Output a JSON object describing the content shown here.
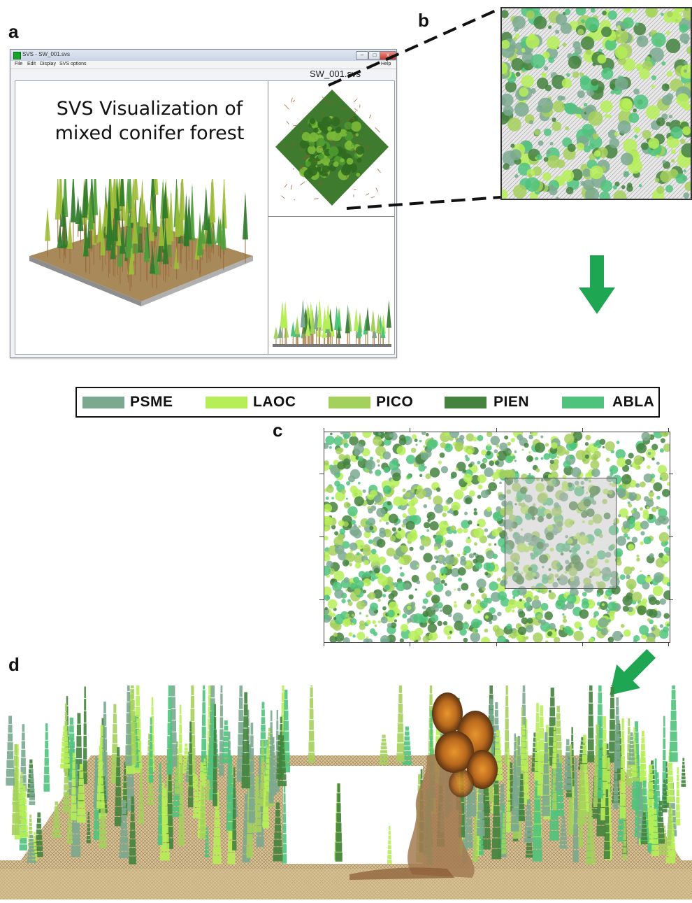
{
  "panels": {
    "a": "a",
    "b": "b",
    "c": "c",
    "d": "d"
  },
  "svs_window": {
    "title": "SVS - SW_001.svs",
    "menu": [
      "File",
      "Edit",
      "Display",
      "SVS options"
    ],
    "help": "Help",
    "filename": "SW_001.svs",
    "caption_line1": "SVS Visualization of",
    "caption_line2": "mixed conifer forest",
    "controls": {
      "minimize": "–",
      "maximize": "□",
      "close": "x"
    }
  },
  "legend": {
    "items": [
      {
        "code": "PSME",
        "color": "#7aa98f"
      },
      {
        "code": "LAOC",
        "color": "#b6ee57"
      },
      {
        "code": "PICO",
        "color": "#a4d05c"
      },
      {
        "code": "PIEN",
        "color": "#43833d"
      },
      {
        "code": "ABLA",
        "color": "#4fc37c"
      }
    ]
  },
  "colors": {
    "arrow": "#1fa652",
    "ground": "#c7a06a",
    "fire": "#c8731e",
    "trunk": "#9b6a3a"
  }
}
